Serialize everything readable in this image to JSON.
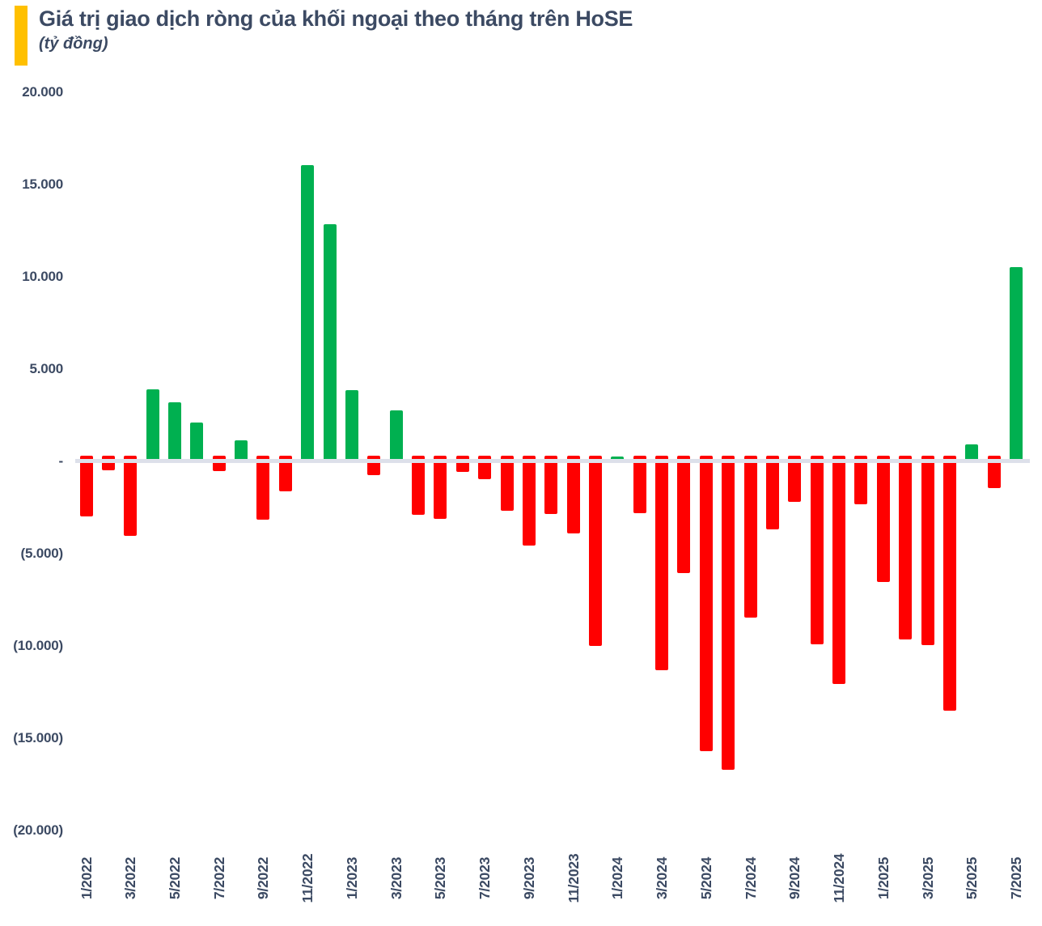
{
  "title": "Giá trị giao dịch ròng của khối ngoại theo tháng trên HoSE",
  "subtitle": "(tỷ đồng)",
  "colors": {
    "accent": "#FFC000",
    "text": "#3C4A63",
    "positive": "#00B050",
    "negative": "#FF0000",
    "axis_line": "#DDE0EA",
    "background": "#FFFFFF"
  },
  "chart_data": {
    "type": "bar",
    "title": "Giá trị giao dịch ròng của khối ngoại theo tháng trên HoSE",
    "unit": "tỷ đồng",
    "grid": false,
    "legend": "none",
    "ylim": [
      -20000,
      20000
    ],
    "ytick_labels": [
      "20.000",
      "15.000",
      "10.000",
      "5.000",
      "-",
      "(5.000)",
      "(10.000)",
      "(15.000)",
      "(20.000)"
    ],
    "ytick_values": [
      20000,
      15000,
      10000,
      5000,
      0,
      -5000,
      -10000,
      -15000,
      -20000
    ],
    "xtick_every": 2,
    "categories": [
      "1/2022",
      "2/2022",
      "3/2022",
      "4/2022",
      "5/2022",
      "6/2022",
      "7/2022",
      "8/2022",
      "9/2022",
      "10/2022",
      "11/2022",
      "12/2022",
      "1/2023",
      "2/2023",
      "3/2023",
      "4/2023",
      "5/2023",
      "6/2023",
      "7/2023",
      "8/2023",
      "9/2023",
      "10/2023",
      "11/2023",
      "12/2023",
      "1/2024",
      "2/2024",
      "3/2024",
      "4/2024",
      "5/2024",
      "6/2024",
      "7/2024",
      "8/2024",
      "9/2024",
      "10/2024",
      "11/2024",
      "12/2024",
      "1/2025",
      "2/2025",
      "3/2025",
      "4/2025",
      "5/2025",
      "6/2025",
      "7/2025"
    ],
    "values": [
      -3000,
      -480,
      -4050,
      3900,
      3200,
      2100,
      -510,
      1130,
      -3140,
      -1610,
      16050,
      12870,
      3850,
      -730,
      2780,
      -2900,
      -3110,
      -560,
      -950,
      -2680,
      -4580,
      -2850,
      -3900,
      -10010,
      260,
      -2810,
      -11330,
      -6040,
      -15720,
      -16700,
      -8450,
      -3700,
      -2190,
      -9910,
      -12060,
      -2340,
      -6550,
      -9650,
      -9940,
      -13520,
      920,
      -1430,
      10530
    ]
  }
}
